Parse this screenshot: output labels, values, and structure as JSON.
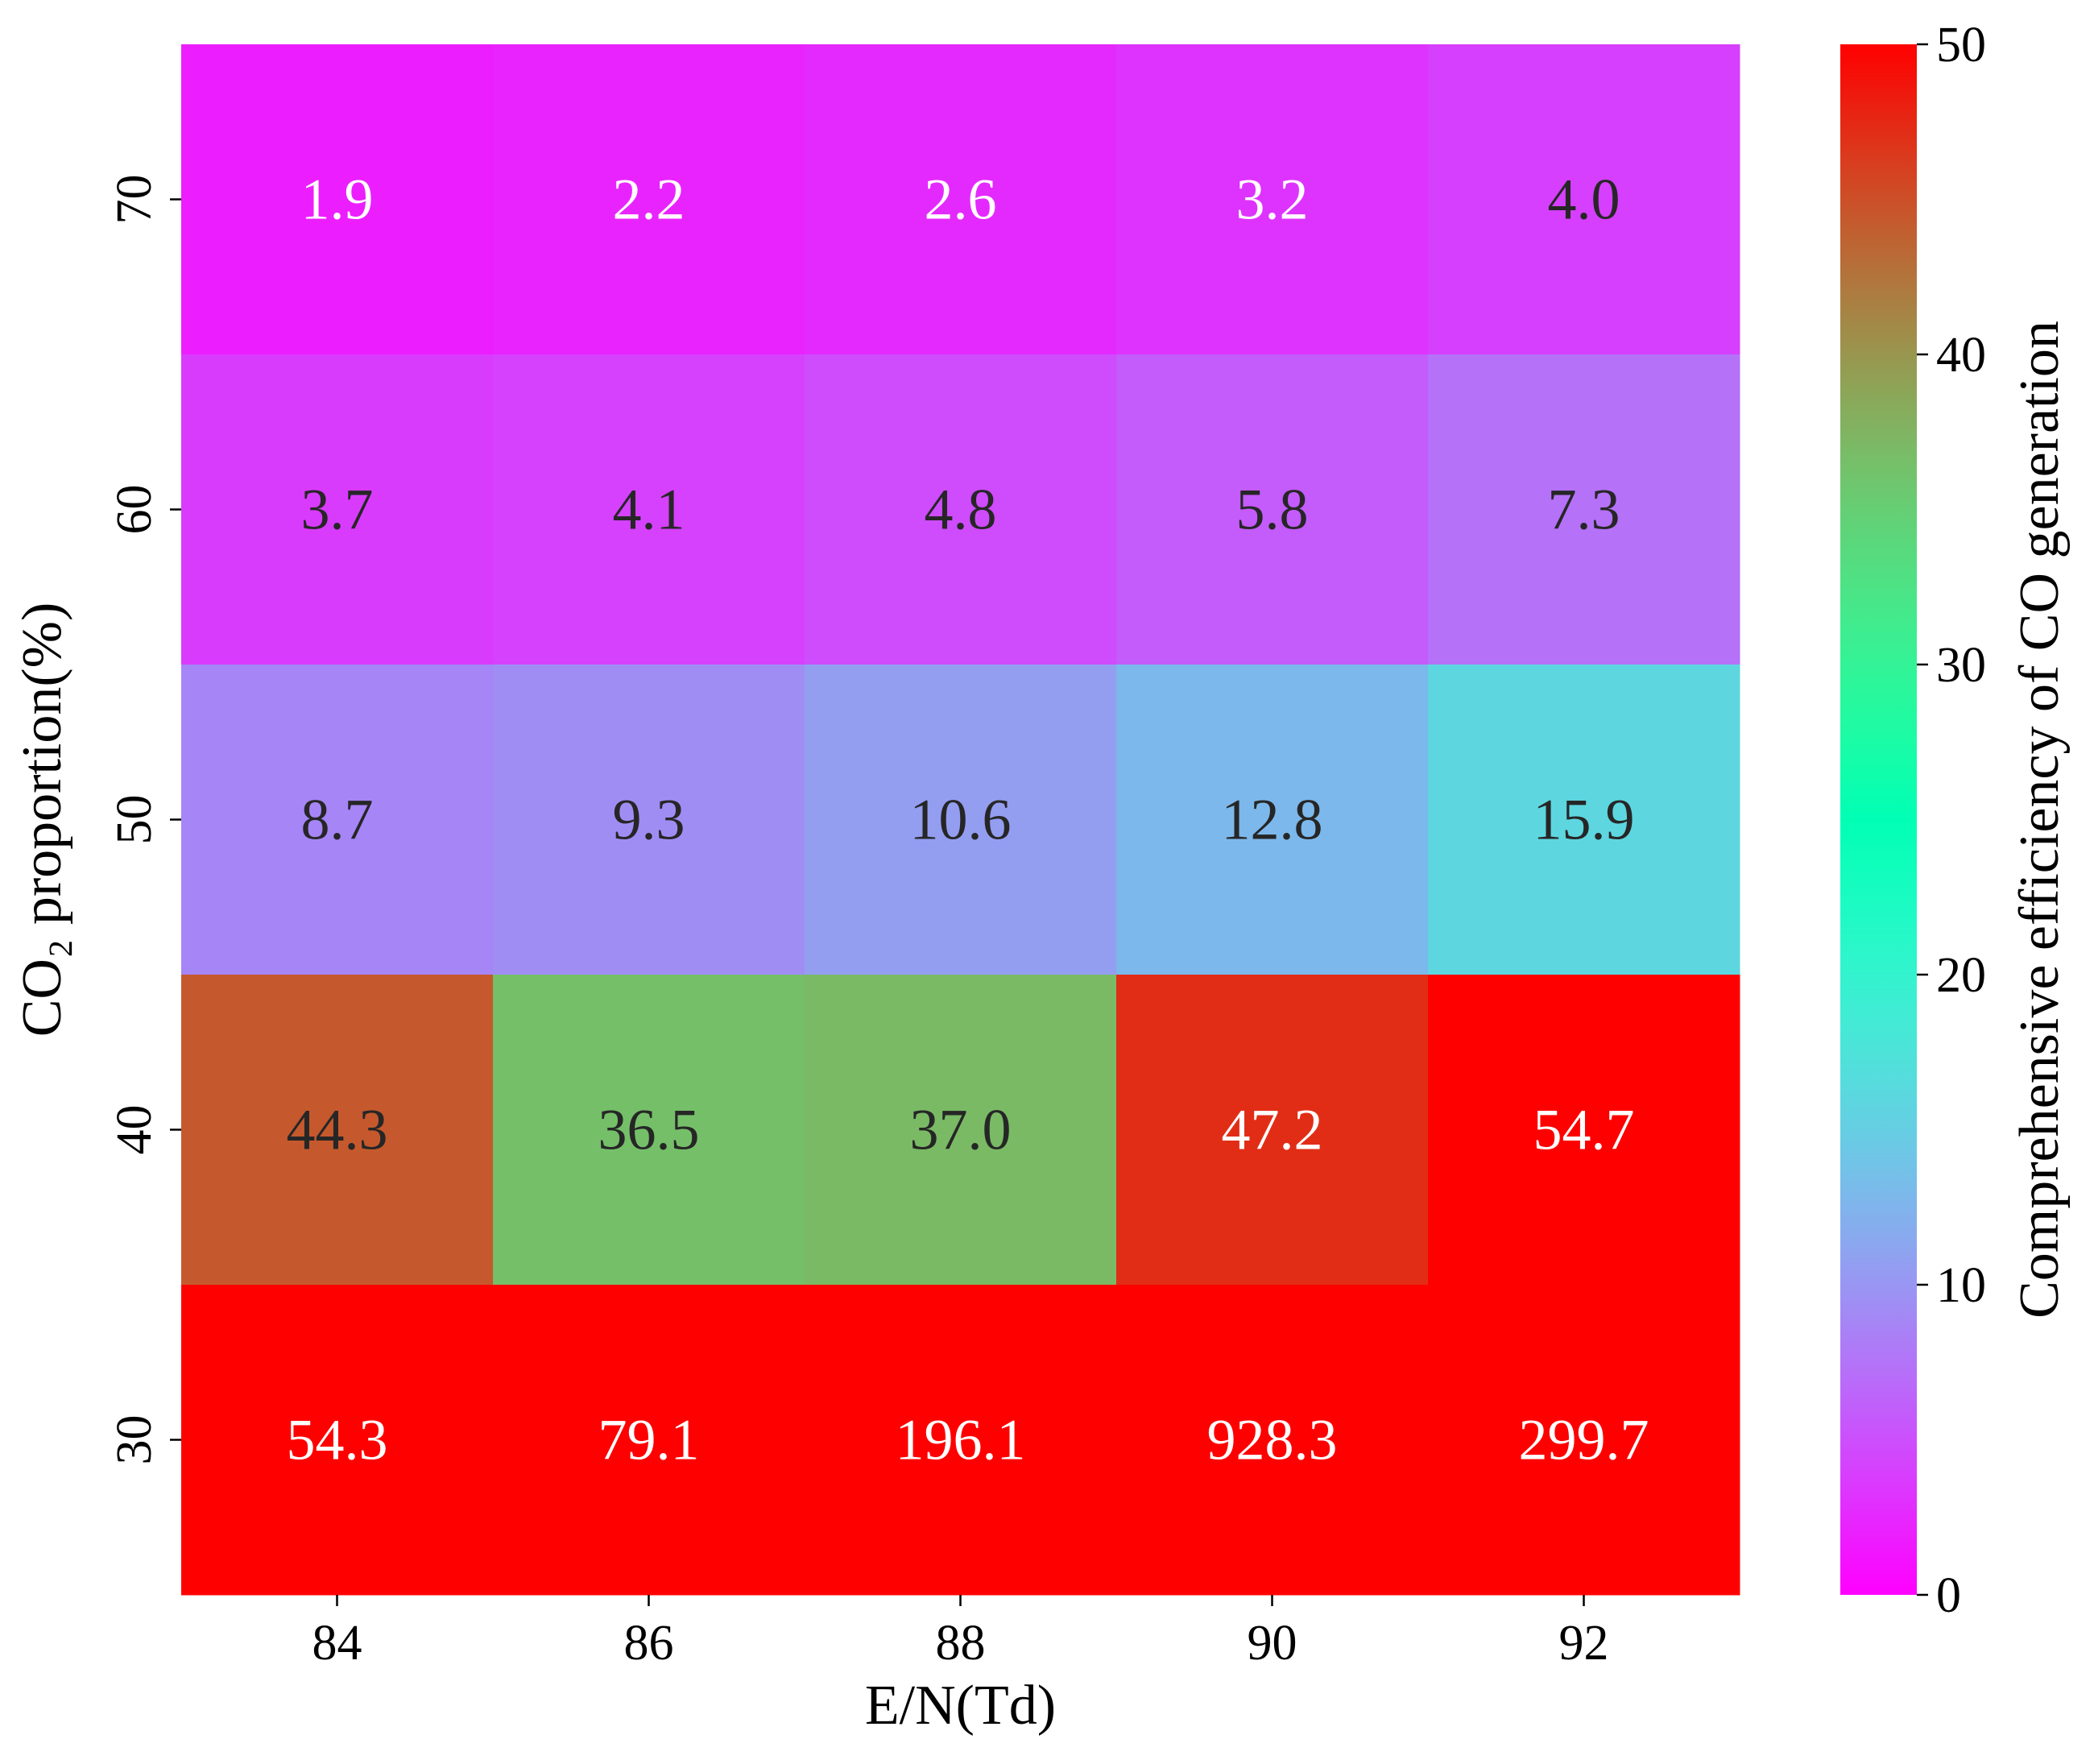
{
  "chart_data": {
    "type": "heatmap",
    "xlabel": "E/N(Td)",
    "ylabel": "CO₂ proportion(%)",
    "x_categories": [
      "84",
      "86",
      "88",
      "90",
      "92"
    ],
    "y_categories": [
      "70",
      "60",
      "50",
      "40",
      "30"
    ],
    "values": [
      [
        1.9,
        2.2,
        2.6,
        3.2,
        4.0
      ],
      [
        3.7,
        4.1,
        4.8,
        5.8,
        7.3
      ],
      [
        8.7,
        9.3,
        10.6,
        12.8,
        15.9
      ],
      [
        44.3,
        36.5,
        37.0,
        47.2,
        54.7
      ],
      [
        54.3,
        79.1,
        196.1,
        928.3,
        299.7
      ]
    ],
    "value_labels": [
      [
        "1.9",
        "2.2",
        "2.6",
        "3.2",
        "4.0"
      ],
      [
        "3.7",
        "4.1",
        "4.8",
        "5.8",
        "7.3"
      ],
      [
        "8.7",
        "9.3",
        "10.6",
        "12.8",
        "15.9"
      ],
      [
        "44.3",
        "36.5",
        "37.0",
        "47.2",
        "54.7"
      ],
      [
        "54.3",
        "79.1",
        "196.1",
        "928.3",
        "299.7"
      ]
    ],
    "colorbar": {
      "label": "Comprehensive efficiency of CO generation",
      "range": [
        0,
        50
      ],
      "ticks": [
        "0",
        "10",
        "20",
        "30",
        "40",
        "50"
      ],
      "colormap": "rainbow"
    },
    "colors": {
      "dark_text": "#262626",
      "light_text": "#ffffff"
    }
  }
}
